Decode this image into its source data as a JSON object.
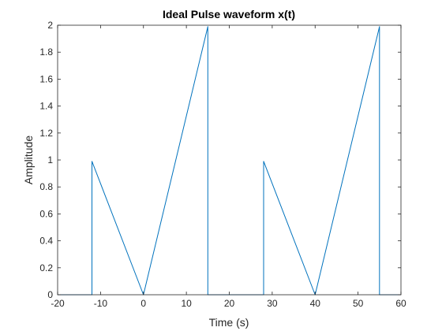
{
  "chart_data": {
    "type": "line",
    "title": "Ideal Pulse waveform x(t)",
    "xlabel": "Time (s)",
    "ylabel": "Amplitude",
    "xlim": [
      -20,
      60
    ],
    "ylim": [
      0,
      2
    ],
    "xticks": [
      -20,
      -10,
      0,
      10,
      20,
      30,
      40,
      50,
      60
    ],
    "yticks": [
      0,
      0.2,
      0.4,
      0.6,
      0.8,
      1,
      1.2,
      1.4,
      1.6,
      1.8,
      2
    ],
    "grid": false,
    "line_color": "#0072BD",
    "series": [
      {
        "x": [
          -20,
          -12,
          -12,
          0,
          15,
          15,
          28,
          28,
          40,
          55,
          55,
          60
        ],
        "y": [
          0,
          0,
          0.99,
          0,
          1.99,
          0,
          0,
          0.99,
          0,
          1.99,
          0,
          0
        ]
      }
    ]
  }
}
